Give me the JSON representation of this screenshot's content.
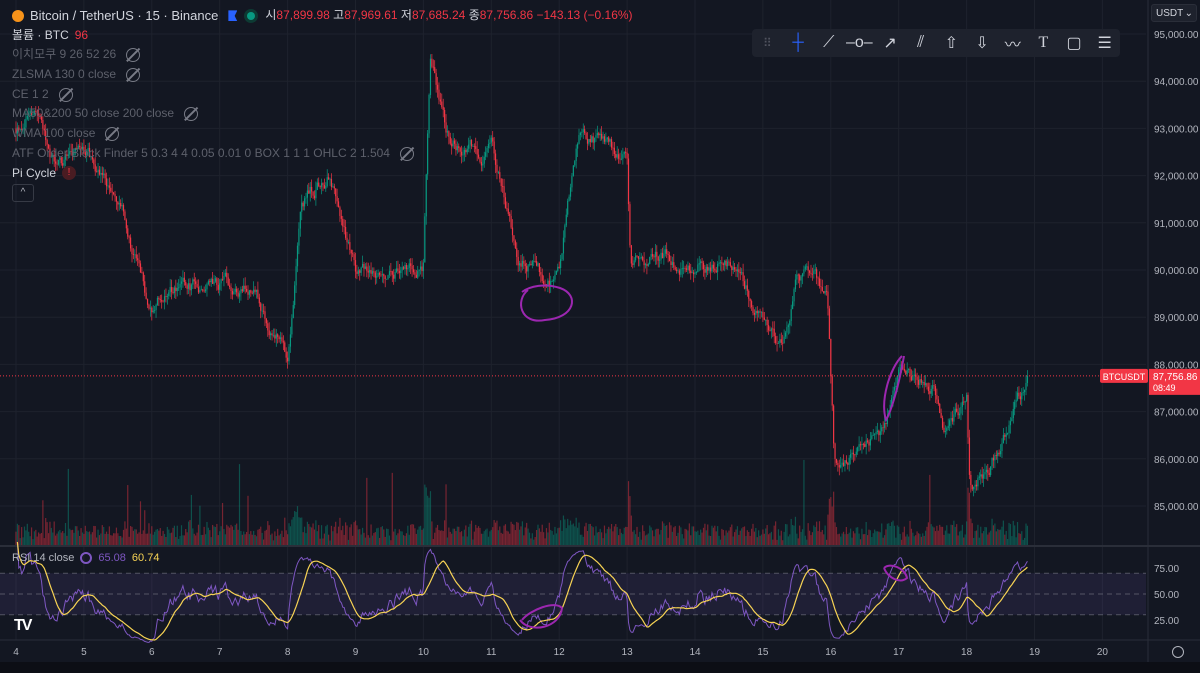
{
  "header": {
    "symbol_title": "Bitcoin / TetherUS · 15 · Binance",
    "ohlc": {
      "o_label": "시",
      "o": "87,899.98",
      "h_label": "고",
      "h": "87,969.61",
      "l_label": "저",
      "l": "87,685.24",
      "c_label": "종",
      "c": "87,756.86",
      "change": "−143.13 (−0.16%)"
    },
    "volume_label": "볼륨 · BTC",
    "volume_value": "96"
  },
  "indicators": [
    "이치모쿠 9 26 52 26",
    "ZLSMA 130 0 close",
    "CE 1 2",
    "MA50&200 50 close 200 close",
    "WMA 100 close",
    "ATF Order Block Finder 5 0.3 4 4 0.05 0.01 0 BOX 1 1 1 OHLC 2 1.504"
  ],
  "pi_cycle": {
    "label": "Pi Cycle",
    "warning": "!"
  },
  "collapse_label": "^",
  "toolbar": {
    "tools": [
      "drag-handle",
      "crosshair",
      "trend-line",
      "horizontal-line",
      "arrow-line",
      "parallel-channel",
      "arrow-up",
      "arrow-down",
      "path",
      "text",
      "callout",
      "more"
    ]
  },
  "currency_select": "USDT",
  "price_axis": {
    "ticks": [
      "95,000.00",
      "94,000.00",
      "93,000.00",
      "92,000.00",
      "91,000.00",
      "90,000.00",
      "89,000.00",
      "88,000.00",
      "87,000.00",
      "86,000.00",
      "85,000.00"
    ],
    "symbol_tag": "BTCUSDT",
    "last_price": "87,756.86",
    "countdown": "08:49"
  },
  "rsi": {
    "label": "RSI 14 close",
    "rsi_value": "65.08",
    "ma_value": "60.74",
    "ticks": [
      "75.00",
      "50.00",
      "25.00"
    ]
  },
  "time_axis": {
    "ticks": [
      "4",
      "5",
      "6",
      "7",
      "8",
      "9",
      "10",
      "11",
      "12",
      "13",
      "14",
      "15",
      "16",
      "17",
      "18",
      "19",
      "20"
    ]
  },
  "colors": {
    "background": "#131722",
    "up": "#089981",
    "down": "#f23645",
    "rsi_line": "#7e57c2",
    "rsi_ma": "#f7d354",
    "annotation": "#9c27b0"
  },
  "chart_data": {
    "type": "candlestick",
    "xlabel": "",
    "ylabel": "",
    "ylim": [
      84500,
      95000
    ],
    "xlim": [
      4,
      20
    ],
    "grid": true,
    "close_path_waypoints": [
      [
        4.0,
        93000
      ],
      [
        4.3,
        93500
      ],
      [
        4.6,
        92200
      ],
      [
        5.0,
        92500
      ],
      [
        5.3,
        92000
      ],
      [
        5.6,
        91000
      ],
      [
        6.0,
        89000
      ],
      [
        6.2,
        89500
      ],
      [
        7.0,
        89700
      ],
      [
        7.5,
        89500
      ],
      [
        8.0,
        88200
      ],
      [
        8.2,
        91500
      ],
      [
        8.6,
        92000
      ],
      [
        9.0,
        90000
      ],
      [
        9.5,
        90000
      ],
      [
        10.0,
        90200
      ],
      [
        10.1,
        94300
      ],
      [
        10.4,
        92700
      ],
      [
        10.9,
        92500
      ],
      [
        11.0,
        93000
      ],
      [
        11.4,
        90000
      ],
      [
        11.6,
        90100
      ],
      [
        11.8,
        89800
      ],
      [
        12.0,
        90000
      ],
      [
        12.3,
        92900
      ],
      [
        13.0,
        92300
      ],
      [
        13.05,
        90000
      ],
      [
        13.5,
        90400
      ],
      [
        14.0,
        90100
      ],
      [
        14.5,
        90200
      ],
      [
        15.0,
        89000
      ],
      [
        15.3,
        88300
      ],
      [
        15.5,
        89800
      ],
      [
        15.95,
        89600
      ],
      [
        16.05,
        86000
      ],
      [
        16.5,
        86200
      ],
      [
        16.8,
        86500
      ],
      [
        17.0,
        87900
      ],
      [
        17.5,
        87500
      ],
      [
        17.7,
        86500
      ],
      [
        18.0,
        87400
      ],
      [
        18.05,
        85400
      ],
      [
        18.5,
        86200
      ],
      [
        18.9,
        87757
      ]
    ],
    "last_price": 87756.86,
    "rsi_bands": [
      25,
      50,
      75
    ]
  }
}
